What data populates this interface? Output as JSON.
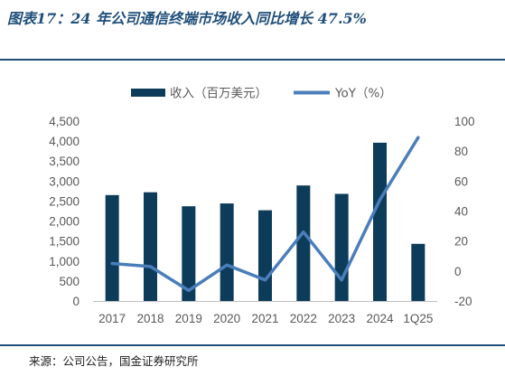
{
  "header": {
    "title": "图表17：24 年公司通信终端市场收入同比增长 47.5%"
  },
  "footer": {
    "source": "来源：公司公告，国金证券研究所"
  },
  "colors": {
    "bar": "#0d3c5a",
    "line": "#4a7ebb",
    "rule": "#1f4e79"
  },
  "chart_data": {
    "type": "bar",
    "categories": [
      "2017",
      "2018",
      "2019",
      "2020",
      "2021",
      "2022",
      "2023",
      "2024",
      "1Q25"
    ],
    "series": [
      {
        "name": "收入（百万美元）",
        "type": "bar",
        "axis": "left",
        "values": [
          2650,
          2720,
          2370,
          2440,
          2270,
          2890,
          2680,
          3960,
          1430
        ]
      },
      {
        "name": "YoY（%）",
        "type": "line",
        "axis": "right",
        "values": [
          5,
          3,
          -13,
          4,
          -6,
          26,
          -6,
          47.5,
          89
        ]
      }
    ],
    "y_left": {
      "lim": [
        0,
        4500
      ],
      "ticks": [
        "0",
        "500",
        "1,000",
        "1,500",
        "2,000",
        "2,500",
        "3,000",
        "3,500",
        "4,000",
        "4,500"
      ]
    },
    "y_right": {
      "lim": [
        -20,
        100
      ],
      "ticks": [
        "-20",
        "0",
        "20",
        "40",
        "60",
        "80",
        "100"
      ]
    },
    "grid": false,
    "legend_position": "top-center"
  }
}
